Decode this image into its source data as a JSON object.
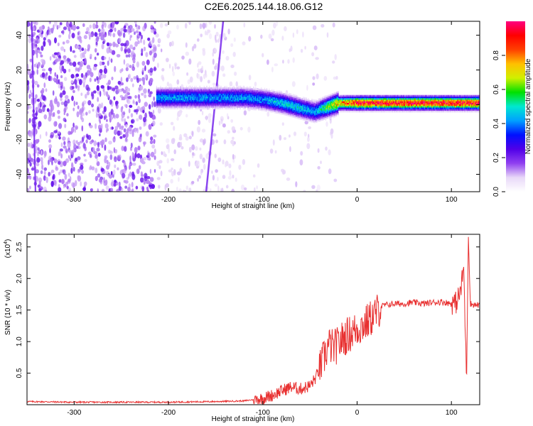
{
  "title": "C2E6.2025.144.18.06.G12",
  "chart_data": [
    {
      "type": "heatmap",
      "xlabel": "Height of straight line (km)",
      "ylabel": "Frequency (Hz)",
      "xlim": [
        -350,
        130
      ],
      "ylim": [
        -50,
        48
      ],
      "xticks": [
        -300,
        -200,
        -100,
        0,
        100
      ],
      "yticks": [
        -40,
        -20,
        0,
        20,
        40
      ],
      "grid": false,
      "colorbar": {
        "label": "Normalized spectral amplitude",
        "range": [
          0,
          1
        ],
        "ticks": [
          "0.0",
          "0.2",
          "0.4",
          "0.6",
          "0.8"
        ],
        "colors": [
          "#ffffff",
          "#e8d8f8",
          "#9040f0",
          "#5000e8",
          "#0010ff",
          "#00a0ff",
          "#00e8d0",
          "#00e000",
          "#d0f000",
          "#ffc000",
          "#ff4000",
          "#ff0000",
          "#ff0080"
        ]
      },
      "ridge": {
        "x": [
          -213,
          -200,
          -170,
          -150,
          -120,
          -100,
          -80,
          -60,
          -45,
          -35,
          -20,
          0,
          20,
          40,
          60,
          80,
          100,
          120,
          130
        ],
        "freq": [
          4,
          4,
          4,
          4,
          4,
          3,
          1,
          -2,
          -4,
          -2,
          1,
          1,
          1,
          1,
          1,
          1,
          1,
          1,
          1
        ],
        "amplitude": [
          0.45,
          0.45,
          0.45,
          0.45,
          0.45,
          0.45,
          0.5,
          0.5,
          0.45,
          0.6,
          0.8,
          1,
          1,
          1,
          1,
          1,
          1,
          1,
          1
        ]
      }
    },
    {
      "type": "line",
      "xlabel": "Height of straight line (km)",
      "ylabel": "SNR (10 * v/v)",
      "y_multiplier": "(x10",
      "y_multiplier_exp": "4",
      "y_multiplier_close": ")",
      "xlim": [
        -350,
        130
      ],
      "ylim": [
        0,
        2.7
      ],
      "xticks": [
        -300,
        -200,
        -100,
        0,
        100
      ],
      "yticks": [
        0.5,
        1.0,
        1.5,
        2.0,
        2.5
      ],
      "ytick_labels": [
        "0.5",
        "1.0",
        "1.5",
        "2.0",
        "2.5"
      ],
      "grid": false,
      "series": [
        {
          "color": "#e83030",
          "x": [
            -350,
            -300,
            -250,
            -200,
            -150,
            -120,
            -100,
            -90,
            -80,
            -70,
            -60,
            -50,
            -45,
            -40,
            -35,
            -30,
            -25,
            -20,
            -15,
            -10,
            -5,
            0,
            10,
            20,
            25,
            30,
            40,
            50,
            60,
            70,
            80,
            90,
            100,
            105,
            110,
            113,
            116,
            118,
            120,
            125,
            130
          ],
          "y": [
            0.05,
            0.04,
            0.04,
            0.04,
            0.05,
            0.06,
            0.1,
            0.15,
            0.22,
            0.28,
            0.25,
            0.3,
            0.4,
            0.55,
            0.75,
            0.95,
            0.9,
            0.95,
            1.05,
            1.1,
            1.15,
            1.2,
            1.3,
            1.45,
            1.55,
            1.58,
            1.6,
            1.6,
            1.62,
            1.6,
            1.62,
            1.63,
            1.6,
            1.62,
            1.8,
            2.2,
            0.4,
            2.7,
            1.6,
            1.58,
            1.58
          ]
        }
      ]
    }
  ]
}
